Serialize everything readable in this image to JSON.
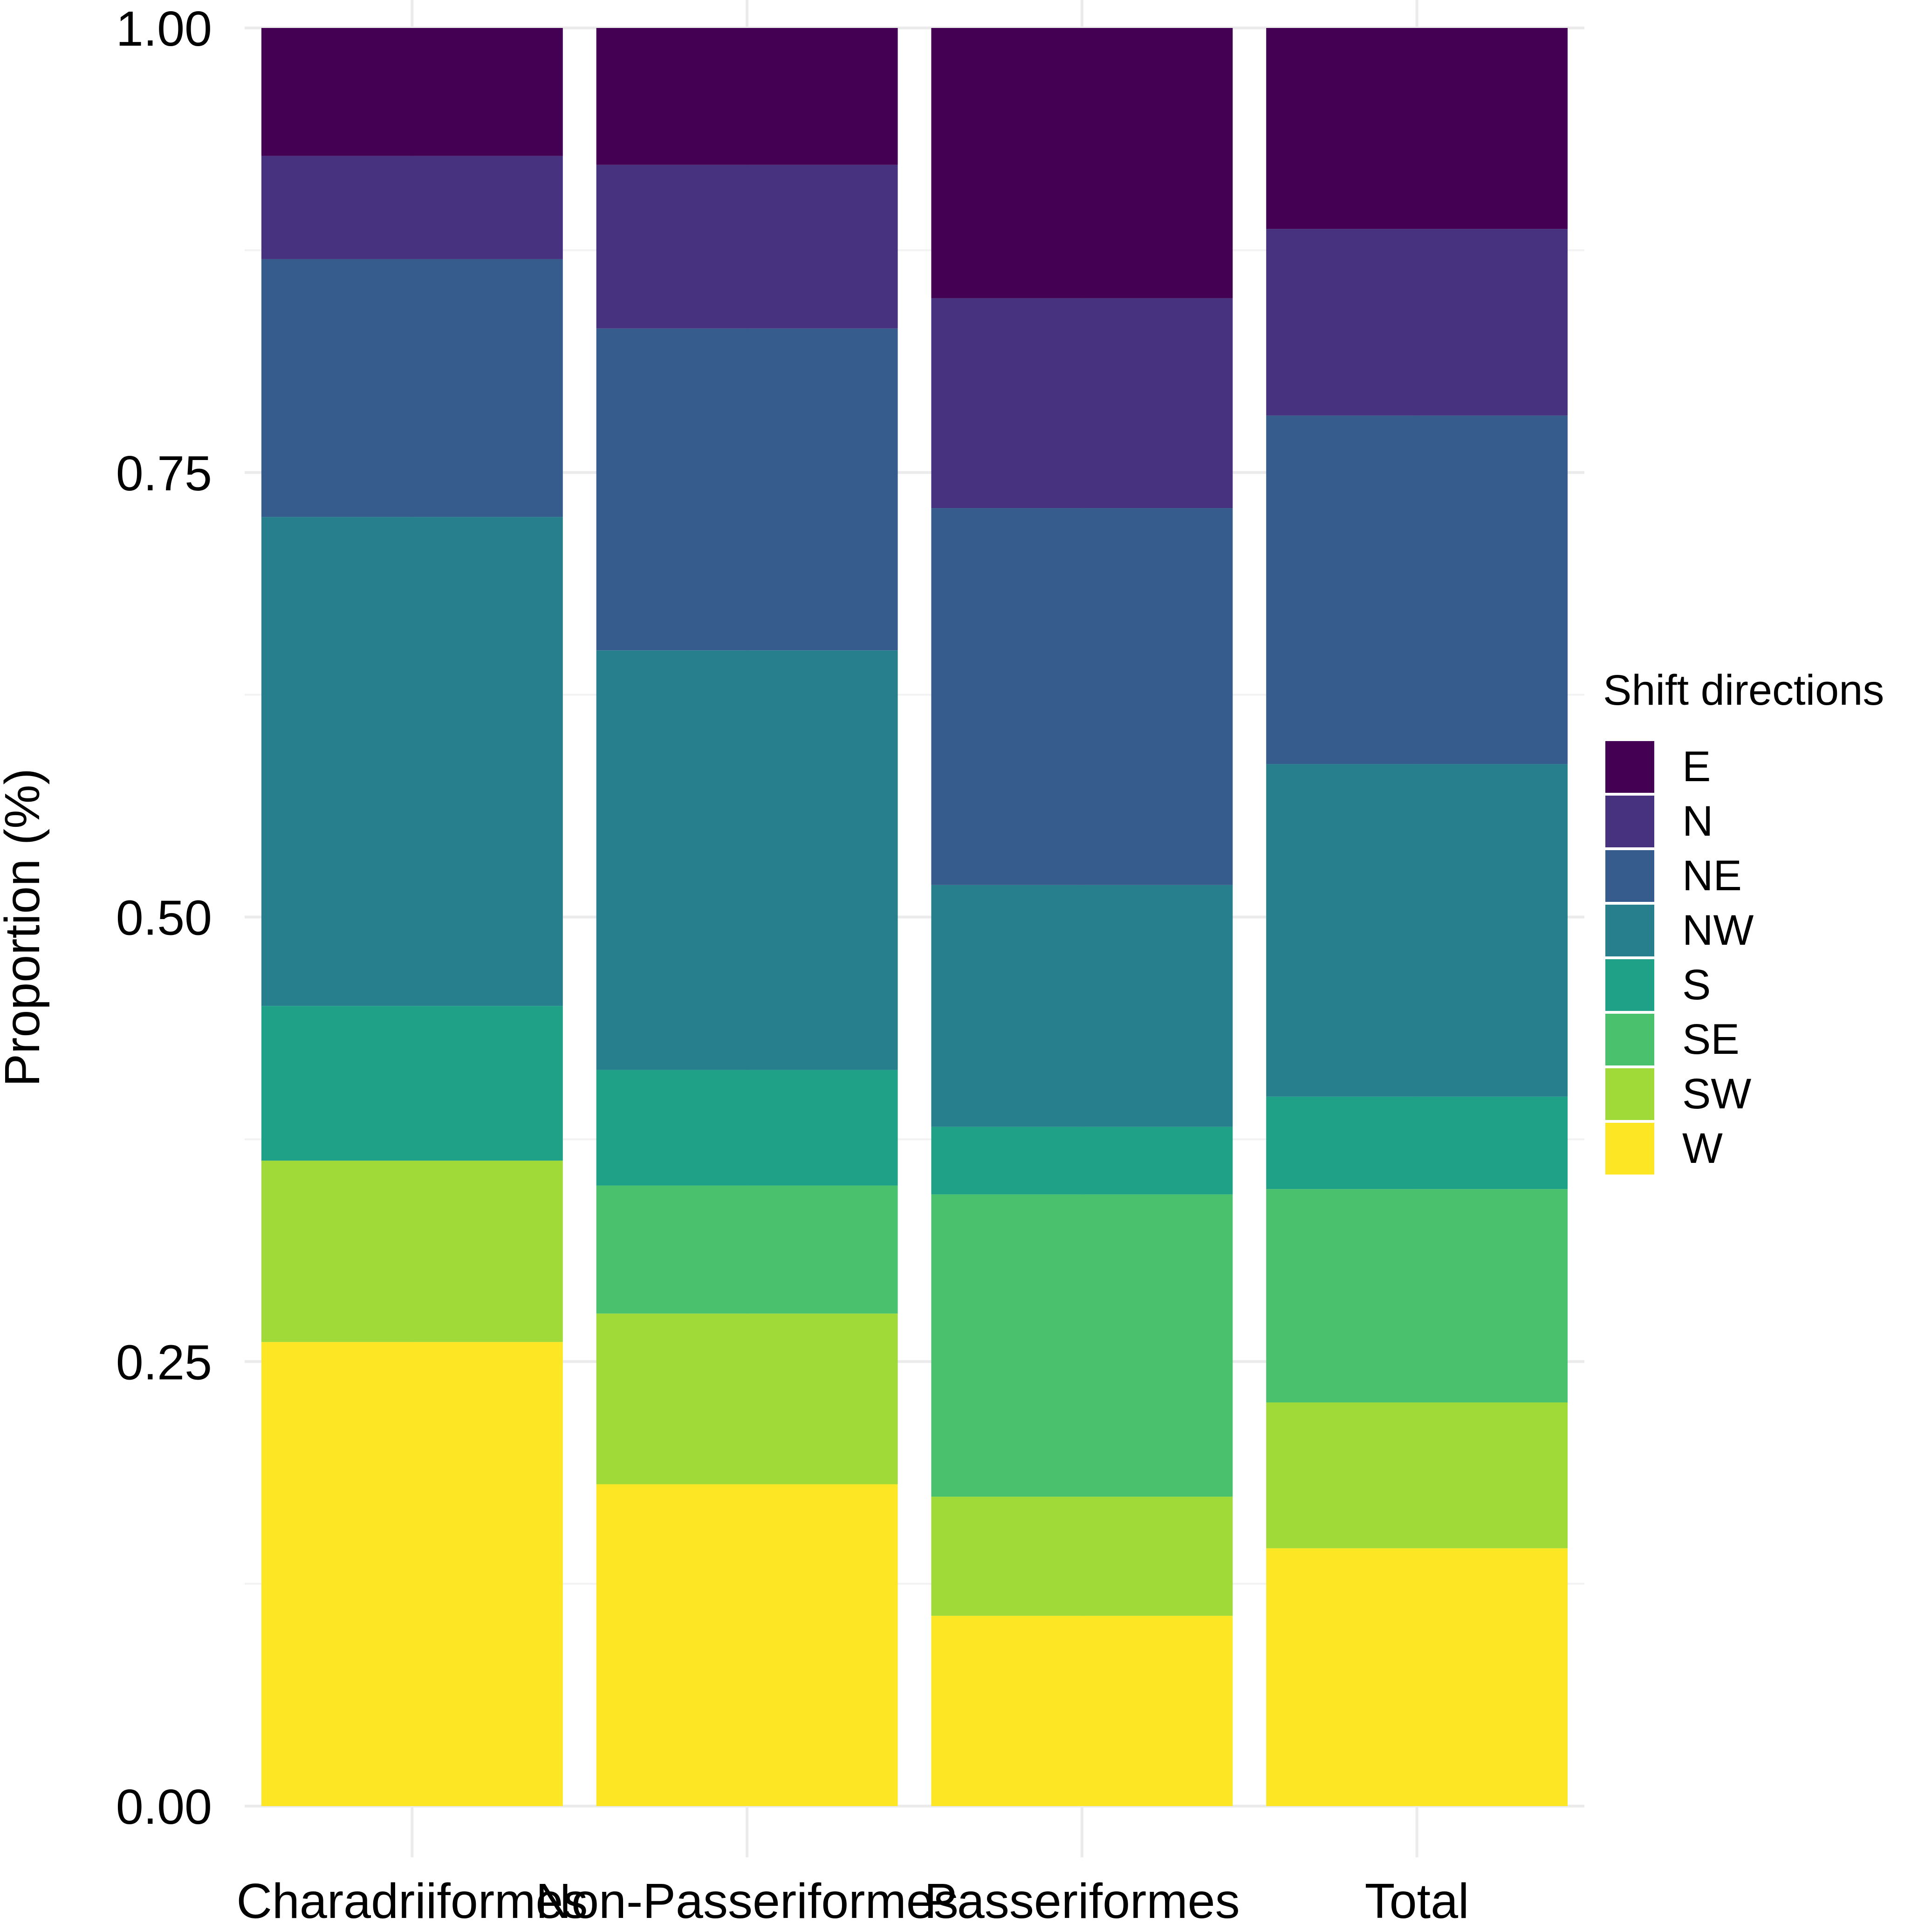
{
  "chart_data": {
    "type": "bar",
    "stacked": true,
    "title": "",
    "xlabel": "",
    "ylabel": "Proportion (%)",
    "ylim": [
      0,
      1
    ],
    "yticks": [
      "0.00",
      "0.25",
      "0.50",
      "0.75",
      "1.00"
    ],
    "grid": true,
    "categories": [
      "Charadriiformes",
      "Non-Passeriformes",
      "Passeriformes",
      "Total"
    ],
    "legend": {
      "title": "Shift directions",
      "position": "right",
      "entries": [
        "E",
        "N",
        "NE",
        "NW",
        "S",
        "SE",
        "SW",
        "W"
      ]
    },
    "series": [
      {
        "name": "W",
        "color": "#FDE725",
        "values": [
          0.261,
          0.181,
          0.107,
          0.145
        ]
      },
      {
        "name": "SW",
        "color": "#A0DA39",
        "values": [
          0.102,
          0.096,
          0.067,
          0.082
        ]
      },
      {
        "name": "SE",
        "color": "#4AC16D",
        "values": [
          0.0,
          0.072,
          0.17,
          0.12
        ]
      },
      {
        "name": "S",
        "color": "#1FA187",
        "values": [
          0.087,
          0.065,
          0.038,
          0.052
        ]
      },
      {
        "name": "NW",
        "color": "#277F8E",
        "values": [
          0.275,
          0.236,
          0.136,
          0.187
        ]
      },
      {
        "name": "NE",
        "color": "#365C8D",
        "values": [
          0.145,
          0.181,
          0.212,
          0.196
        ]
      },
      {
        "name": "N",
        "color": "#46327E",
        "values": [
          0.058,
          0.092,
          0.118,
          0.105
        ]
      },
      {
        "name": "E",
        "color": "#440154",
        "values": [
          0.072,
          0.077,
          0.152,
          0.113
        ]
      }
    ]
  }
}
